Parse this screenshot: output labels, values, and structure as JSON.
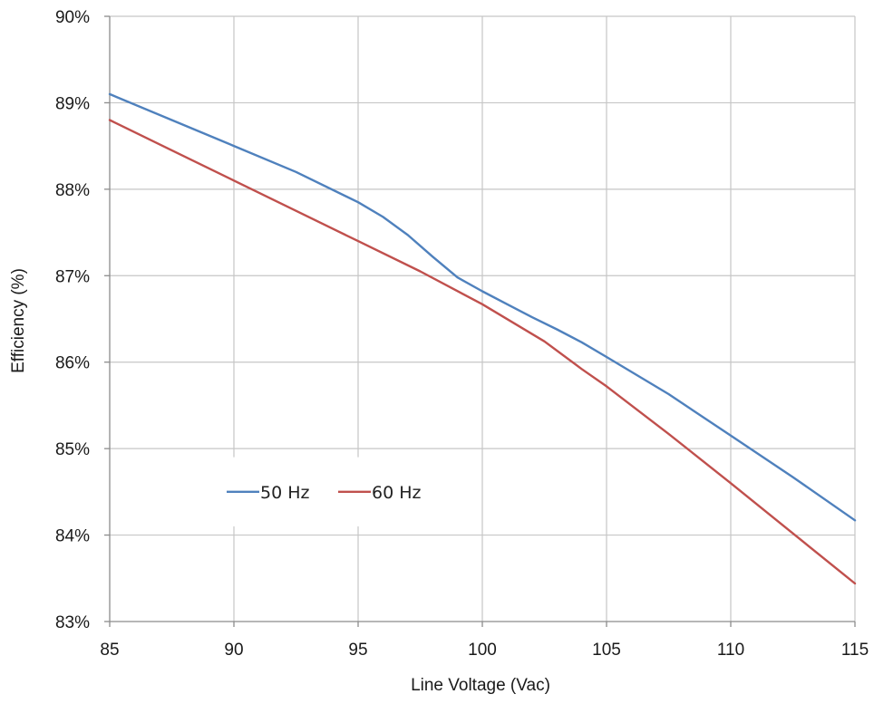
{
  "chart_data": {
    "type": "line",
    "title": "",
    "xlabel": "Line Voltage (Vac)",
    "ylabel": "Efficiency (%)",
    "xlim": [
      85,
      115
    ],
    "ylim": [
      83,
      90
    ],
    "x_ticks": [
      "85",
      "90",
      "95",
      "100",
      "105",
      "110",
      "115"
    ],
    "y_ticks": [
      "83%",
      "84%",
      "85%",
      "86%",
      "87%",
      "88%",
      "89%",
      "90%"
    ],
    "grid": true,
    "legend_position": "lower-left inside plot",
    "series": [
      {
        "name": "50 Hz",
        "color": "#4f81bd",
        "x": [
          85,
          87.5,
          90,
          92.5,
          95,
          96,
          97,
          98,
          99,
          100,
          101,
          102,
          103,
          104,
          105,
          107.5,
          110,
          112.5,
          115
        ],
        "y": [
          89.1,
          88.8,
          88.5,
          88.2,
          87.85,
          87.68,
          87.47,
          87.22,
          86.98,
          86.82,
          86.67,
          86.52,
          86.38,
          86.23,
          86.06,
          85.63,
          85.15,
          84.67,
          84.17
        ]
      },
      {
        "name": "60 Hz",
        "color": "#c0504d",
        "x": [
          85,
          87.5,
          90,
          92.5,
          95,
          97.5,
          100,
          102.5,
          104,
          105,
          107.5,
          110,
          112.5,
          115
        ],
        "y": [
          88.8,
          88.45,
          88.1,
          87.75,
          87.4,
          87.05,
          86.67,
          86.24,
          85.92,
          85.72,
          85.17,
          84.6,
          84.02,
          83.44
        ]
      }
    ]
  }
}
